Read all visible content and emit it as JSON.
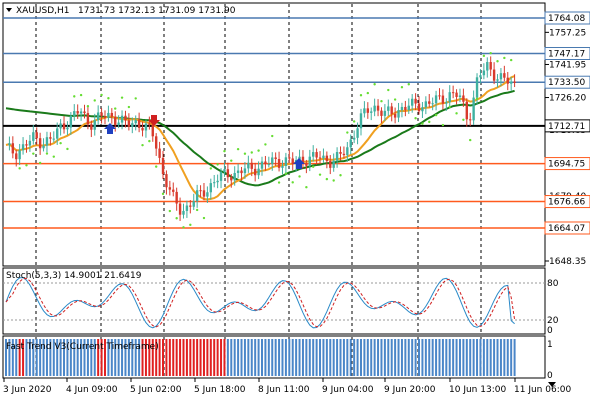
{
  "header": {
    "symbol": "XAUUSD,H1",
    "ohlc": "1731.73 1732.13 1731.09 1731.90"
  },
  "price_axis": {
    "ticks": [
      "1757.25",
      "1741.95",
      "1726.20",
      "1710.65",
      "1679.40",
      "1648.35"
    ],
    "levels": [
      {
        "label": "1764.08",
        "price": 1764.08,
        "color": "#4a79b0"
      },
      {
        "label": "1747.17",
        "price": 1747.17,
        "color": "#4a79b0"
      },
      {
        "label": "1733.50",
        "price": 1733.5,
        "color": "#4a79b0"
      },
      {
        "label": "1712.71",
        "price": 1712.71,
        "color": "#000000"
      },
      {
        "label": "1694.75",
        "price": 1694.75,
        "color": "#ff5a1e"
      },
      {
        "label": "1676.66",
        "price": 1676.66,
        "color": "#ff5a1e"
      },
      {
        "label": "1664.07",
        "price": 1664.07,
        "color": "#ff5a1e"
      }
    ],
    "current": "1731.90"
  },
  "stoch": {
    "label": "Stoch(5,3,3) 14.9001 21.6419",
    "ticks": [
      "80",
      "20",
      "0"
    ]
  },
  "trend": {
    "label": "Fast Trend V3(Current Timeframe)",
    "ticks": [
      "1",
      "0"
    ]
  },
  "time_axis": [
    "3 Jun 2020",
    "4 Jun 09:00",
    "5 Jun 02:00",
    "5 Jun 18:00",
    "8 Jun 11:00",
    "9 Jun 04:00",
    "9 Jun 20:00",
    "10 Jun 13:00",
    "11 Jun 06:00"
  ],
  "colors": {
    "bull": "#3fb0a0",
    "bear": "#d83a2c",
    "ma_fast": "#f0a020",
    "ma_slow": "#1a7a1a",
    "sar": "#66dd33",
    "trend_up": "#4a86c8",
    "trend_down": "#e02020"
  },
  "chart_data": {
    "type": "candlestick",
    "close_path": [
      1702,
      1700,
      1703,
      1707,
      1705,
      1706,
      1713,
      1716,
      1720,
      1714,
      1716,
      1718,
      1716,
      1713,
      1715,
      1712,
      1708,
      1690,
      1678,
      1672,
      1676,
      1680,
      1684,
      1688,
      1690,
      1690,
      1692,
      1693,
      1694,
      1696,
      1696,
      1695,
      1697,
      1697,
      1698,
      1696,
      1697,
      1703,
      1713,
      1720,
      1722,
      1718,
      1719,
      1722,
      1722,
      1723,
      1724,
      1725,
      1728,
      1727,
      1715,
      1735,
      1741,
      1737,
      1734,
      1732
    ]
  }
}
